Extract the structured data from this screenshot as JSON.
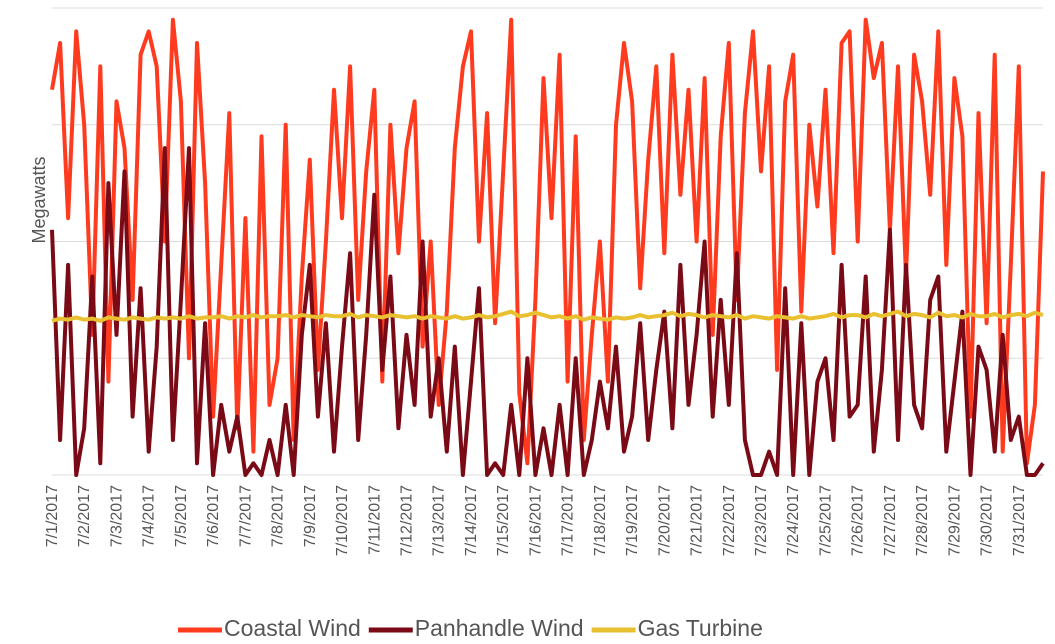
{
  "chart_data": {
    "type": "line",
    "y_label": "Megawatts",
    "x": [
      "7/1/2017",
      null,
      null,
      null,
      "7/2/2017",
      null,
      null,
      null,
      "7/3/2017",
      null,
      null,
      null,
      "7/4/2017",
      null,
      null,
      null,
      "7/5/2017",
      null,
      null,
      null,
      "7/6/2017",
      null,
      null,
      null,
      "7/7/2017",
      null,
      null,
      null,
      "7/8/2017",
      null,
      null,
      null,
      "7/9/2017",
      null,
      null,
      null,
      "7/10/2017",
      null,
      null,
      null,
      "7/11/2017",
      null,
      null,
      null,
      "7/12/2017",
      null,
      null,
      null,
      "7/13/2017",
      null,
      null,
      null,
      "7/14/2017",
      null,
      null,
      null,
      "7/15/2017",
      null,
      null,
      null,
      "7/16/2017",
      null,
      null,
      null,
      "7/17/2017",
      null,
      null,
      null,
      "7/18/2017",
      null,
      null,
      null,
      "7/19/2017",
      null,
      null,
      null,
      "7/20/2017",
      null,
      null,
      null,
      "7/21/2017",
      null,
      null,
      null,
      "7/22/2017",
      null,
      null,
      null,
      "7/23/2017",
      null,
      null,
      null,
      "7/24/2017",
      null,
      null,
      null,
      "7/25/2017",
      null,
      null,
      null,
      "7/26/2017",
      null,
      null,
      null,
      "7/27/2017",
      null,
      null,
      null,
      "7/28/2017",
      null,
      null,
      null,
      "7/29/2017",
      null,
      null,
      null,
      "7/30/2017",
      null,
      null,
      null,
      "7/31/2017",
      null,
      null,
      null
    ],
    "series": [
      {
        "name": "Coastal Wind",
        "color": "#ff3b1f",
        "values": [
          3.3,
          3.7,
          2.2,
          3.8,
          3.0,
          1.2,
          3.5,
          0.8,
          3.2,
          2.8,
          1.5,
          3.6,
          3.8,
          3.5,
          2.0,
          3.9,
          3.2,
          1.0,
          3.7,
          2.5,
          0.5,
          1.8,
          3.1,
          0.4,
          2.2,
          0.2,
          2.9,
          0.6,
          1.0,
          3.0,
          0.3,
          1.7,
          2.7,
          0.9,
          2.0,
          3.3,
          2.2,
          3.5,
          1.5,
          2.6,
          3.3,
          0.8,
          3.0,
          1.9,
          2.8,
          3.2,
          1.1,
          2.0,
          0.6,
          1.4,
          2.8,
          3.5,
          3.8,
          2.0,
          3.1,
          1.3,
          2.6,
          3.9,
          0.7,
          0.1,
          1.5,
          3.4,
          2.2,
          3.6,
          0.8,
          2.9,
          0.3,
          1.2,
          2.0,
          0.8,
          3.0,
          3.7,
          3.2,
          1.6,
          2.7,
          3.5,
          1.9,
          3.6,
          2.4,
          3.3,
          2.0,
          3.4,
          1.2,
          2.9,
          3.7,
          1.5,
          3.1,
          3.8,
          2.6,
          3.5,
          0.9,
          3.2,
          3.6,
          1.4,
          3.0,
          2.3,
          3.3,
          1.9,
          3.7,
          3.8,
          2.0,
          3.9,
          3.4,
          3.7,
          2.1,
          3.5,
          1.7,
          3.6,
          3.2,
          2.4,
          3.8,
          1.8,
          3.4,
          2.9,
          0.5,
          3.1,
          1.3,
          3.6,
          0.2,
          1.8,
          3.5,
          0.1,
          0.6,
          2.6
        ]
      },
      {
        "name": "Panhandle Wind",
        "color": "#7a0a16",
        "values": [
          2.1,
          0.3,
          1.8,
          0.0,
          0.4,
          1.7,
          0.1,
          2.5,
          1.2,
          2.6,
          0.5,
          1.6,
          0.2,
          1.1,
          2.8,
          0.3,
          1.5,
          2.8,
          0.1,
          1.3,
          0.0,
          0.6,
          0.2,
          0.5,
          0.0,
          0.1,
          0.0,
          0.3,
          0.0,
          0.6,
          0.0,
          1.2,
          1.8,
          0.5,
          1.3,
          0.2,
          1.1,
          1.9,
          0.3,
          1.2,
          2.4,
          0.9,
          1.7,
          0.4,
          1.2,
          0.6,
          2.0,
          0.5,
          1.0,
          0.2,
          1.1,
          0.0,
          0.8,
          1.6,
          0.0,
          0.1,
          0.0,
          0.6,
          0.0,
          1.0,
          0.0,
          0.4,
          0.0,
          0.6,
          0.0,
          1.0,
          0.0,
          0.3,
          0.8,
          0.4,
          1.1,
          0.2,
          0.5,
          1.3,
          0.3,
          0.9,
          1.4,
          0.4,
          1.8,
          0.6,
          1.2,
          2.0,
          0.5,
          1.5,
          0.6,
          1.9,
          0.3,
          0.0,
          0.0,
          0.2,
          0.0,
          1.6,
          0.0,
          1.3,
          0.0,
          0.8,
          1.0,
          0.3,
          1.8,
          0.5,
          0.6,
          1.7,
          0.2,
          0.9,
          2.1,
          0.3,
          1.8,
          0.6,
          0.4,
          1.5,
          1.7,
          0.2,
          0.8,
          1.4,
          0.0,
          1.1,
          0.9,
          0.2,
          1.2,
          0.3,
          0.5,
          0.0,
          0.0,
          0.1
        ]
      },
      {
        "name": "Gas Turbine",
        "color": "#e8c030",
        "values": [
          1.32,
          1.34,
          1.33,
          1.35,
          1.33,
          1.34,
          1.32,
          1.35,
          1.34,
          1.33,
          1.35,
          1.34,
          1.33,
          1.35,
          1.34,
          1.35,
          1.34,
          1.36,
          1.34,
          1.35,
          1.35,
          1.36,
          1.34,
          1.36,
          1.35,
          1.37,
          1.35,
          1.36,
          1.36,
          1.37,
          1.35,
          1.37,
          1.36,
          1.35,
          1.37,
          1.36,
          1.36,
          1.38,
          1.35,
          1.37,
          1.36,
          1.35,
          1.37,
          1.36,
          1.35,
          1.36,
          1.34,
          1.36,
          1.35,
          1.34,
          1.36,
          1.34,
          1.35,
          1.37,
          1.35,
          1.36,
          1.38,
          1.4,
          1.36,
          1.37,
          1.39,
          1.37,
          1.35,
          1.36,
          1.34,
          1.36,
          1.33,
          1.35,
          1.34,
          1.33,
          1.35,
          1.34,
          1.35,
          1.37,
          1.35,
          1.36,
          1.37,
          1.39,
          1.36,
          1.38,
          1.37,
          1.35,
          1.37,
          1.36,
          1.35,
          1.37,
          1.34,
          1.36,
          1.35,
          1.34,
          1.36,
          1.35,
          1.34,
          1.36,
          1.34,
          1.35,
          1.36,
          1.38,
          1.35,
          1.37,
          1.37,
          1.35,
          1.38,
          1.36,
          1.38,
          1.4,
          1.36,
          1.38,
          1.37,
          1.35,
          1.39,
          1.36,
          1.37,
          1.35,
          1.38,
          1.36,
          1.36,
          1.38,
          1.35,
          1.37,
          1.38,
          1.36,
          1.39,
          1.37
        ]
      }
    ],
    "ylim": [
      0,
      4
    ],
    "yticks": [
      0,
      1,
      2,
      3,
      4
    ],
    "grid": true,
    "legend": "bottom"
  }
}
